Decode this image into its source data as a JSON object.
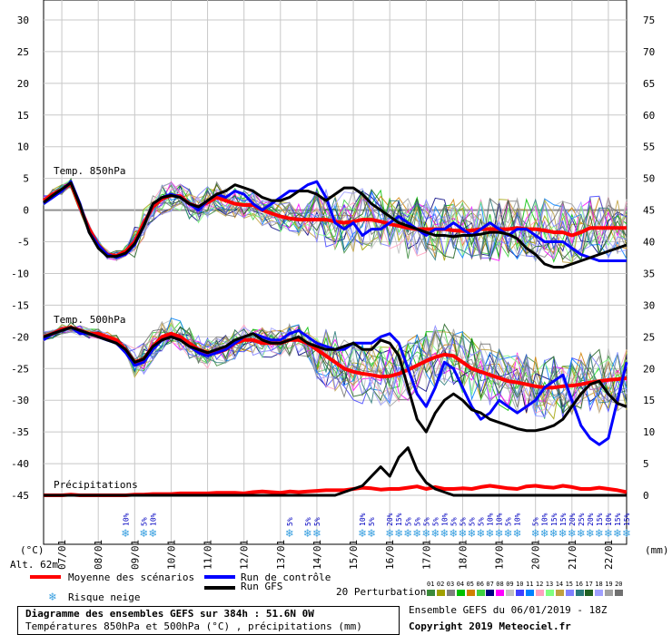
{
  "chart_data": {
    "type": "line",
    "title": "Diagramme des ensembles GEFS sur 384h : 51.6N 0W",
    "subtitle": "Températures 850hPa et 500hPa (°C) , précipitations (mm)",
    "left_axis_unit": "(°C)",
    "right_axis_unit": "(mm)",
    "altitude_label": "Alt. 62m",
    "left_ticks": [
      30,
      25,
      20,
      15,
      10,
      5,
      0,
      -5,
      -10,
      -15,
      -20,
      -25,
      -30,
      -35,
      -40,
      -45
    ],
    "right_ticks": [
      75,
      70,
      65,
      60,
      55,
      50,
      45,
      40,
      35,
      30,
      25,
      20,
      15,
      10,
      5,
      0
    ],
    "ylim": [
      -45,
      30
    ],
    "x_dates": [
      "07/01",
      "08/01",
      "09/01",
      "10/01",
      "11/01",
      "12/01",
      "13/01",
      "14/01",
      "15/01",
      "16/01",
      "17/01",
      "18/01",
      "19/01",
      "20/01",
      "21/01",
      "22/01"
    ],
    "panel_labels": [
      "Temp. 850hPa",
      "Temp. 500hPa",
      "Précipitations"
    ],
    "x_hours": [
      0,
      6,
      12,
      18,
      24,
      30,
      36,
      42,
      48,
      54,
      60,
      66,
      72,
      78,
      84,
      90,
      96,
      102,
      108,
      114,
      120,
      126,
      132,
      138,
      144,
      150,
      156,
      162,
      168,
      174,
      180,
      186,
      192,
      198,
      204,
      210,
      216,
      222,
      228,
      234,
      240,
      246,
      252,
      258,
      264,
      270,
      276,
      282,
      288,
      294,
      300,
      306,
      312,
      318,
      324,
      330,
      336,
      342,
      348,
      354,
      360,
      366,
      372,
      378,
      384
    ],
    "series": [
      {
        "name": "Moyenne des scénarios",
        "color": "#ff0000",
        "group": "t850",
        "values": [
          1.5,
          2.5,
          3.2,
          4.2,
          0.5,
          -3,
          -5.5,
          -7,
          -7.2,
          -6.5,
          -5,
          -2,
          0.5,
          1.8,
          2.3,
          2.2,
          1,
          0.5,
          1.2,
          2,
          1.5,
          1,
          0.8,
          0.8,
          0,
          -0.5,
          -1,
          -1.3,
          -1.5,
          -1.5,
          -1.5,
          -1.5,
          -1.8,
          -2,
          -1.8,
          -1.5,
          -1.5,
          -1.8,
          -2.2,
          -2.5,
          -2.8,
          -3,
          -3,
          -3,
          -3,
          -3.2,
          -3.3,
          -3.2,
          -3,
          -3,
          -3,
          -3,
          -2.8,
          -3,
          -3,
          -3.2,
          -3.5,
          -3.5,
          -4,
          -3.5,
          -2.8,
          -2.8,
          -2.8,
          -2.8,
          -2.8
        ]
      },
      {
        "name": "Run de contrôle",
        "color": "#0000ff",
        "group": "t850",
        "values": [
          1,
          2,
          3,
          4.5,
          1,
          -3.5,
          -5.5,
          -7,
          -7.5,
          -7,
          -5.5,
          -2.5,
          1,
          2,
          2.5,
          2,
          1,
          0,
          1.5,
          2.5,
          2,
          3,
          2.5,
          1,
          0,
          1,
          2,
          3,
          3,
          4,
          4.5,
          2,
          -2,
          -3,
          -2,
          -4,
          -3,
          -3,
          -2,
          -1,
          -2,
          -3,
          -4,
          -3,
          -3,
          -2,
          -3,
          -4,
          -3,
          -2,
          -3,
          -4,
          -3,
          -3,
          -4,
          -5,
          -5,
          -5,
          -6,
          -7,
          -7.5,
          -8,
          -8,
          -8,
          -8
        ]
      },
      {
        "name": "Run GFS",
        "color": "#000000",
        "group": "t850",
        "values": [
          1.2,
          2.3,
          3.3,
          4.3,
          0.8,
          -3.5,
          -6,
          -7.3,
          -7.3,
          -6.8,
          -5.3,
          -2.5,
          1,
          2,
          2.3,
          2,
          1,
          0.5,
          1.5,
          2.5,
          3,
          4,
          3.5,
          3,
          2,
          1.5,
          1.5,
          2,
          3,
          3,
          2.5,
          1.5,
          2.5,
          3.5,
          3.5,
          2.5,
          1,
          0,
          -1,
          -2,
          -2.5,
          -3,
          -3.5,
          -4,
          -4,
          -4.2,
          -4,
          -4,
          -3.8,
          -3.5,
          -3.5,
          -3.8,
          -4.5,
          -6,
          -7,
          -8.5,
          -9,
          -9,
          -8.5,
          -8,
          -7.5,
          -7,
          -6.5,
          -6,
          -5.5
        ]
      },
      {
        "name": "Moyenne des scénarios",
        "color": "#ff0000",
        "group": "t500",
        "values": [
          -20,
          -19.5,
          -18.8,
          -18.5,
          -19,
          -19.5,
          -19.5,
          -20,
          -20.5,
          -22,
          -24,
          -23.5,
          -21.5,
          -20,
          -19.5,
          -20,
          -21,
          -22,
          -22.5,
          -22.5,
          -22,
          -21,
          -20.5,
          -20.5,
          -21,
          -21,
          -21,
          -20.5,
          -20.5,
          -21,
          -22,
          -23,
          -24,
          -25,
          -25.5,
          -25.8,
          -26,
          -26.3,
          -26.2,
          -25.8,
          -25.2,
          -24.5,
          -23.8,
          -23.2,
          -22.8,
          -23,
          -24,
          -25,
          -25.5,
          -26,
          -26.5,
          -27,
          -27.2,
          -27.5,
          -27.8,
          -28,
          -28,
          -27.8,
          -27.7,
          -27.5,
          -27.2,
          -27,
          -26.8,
          -26.7,
          -26.5
        ]
      },
      {
        "name": "Run de contrôle",
        "color": "#0000ff",
        "group": "t500",
        "values": [
          -20.5,
          -19.5,
          -19,
          -18.5,
          -19.5,
          -19.5,
          -20,
          -20.5,
          -21,
          -22.5,
          -24.5,
          -24,
          -22,
          -20.5,
          -20,
          -20.5,
          -21.5,
          -22.5,
          -23,
          -22.5,
          -22,
          -21,
          -20,
          -19.5,
          -20,
          -20.5,
          -20.5,
          -19.5,
          -19,
          -20,
          -21,
          -21.5,
          -22,
          -22,
          -21,
          -21,
          -21,
          -20,
          -19.5,
          -21,
          -25,
          -29,
          -31,
          -28,
          -24,
          -25,
          -28,
          -31,
          -33,
          -32,
          -30,
          -31,
          -32,
          -31,
          -30,
          -28,
          -27,
          -26,
          -30,
          -34,
          -36,
          -37,
          -36,
          -30,
          -24
        ]
      },
      {
        "name": "Run GFS",
        "color": "#000000",
        "group": "t500",
        "values": [
          -20,
          -19.5,
          -19,
          -18.5,
          -19,
          -19.5,
          -20,
          -20.5,
          -21,
          -22,
          -24,
          -23.5,
          -21.5,
          -20.5,
          -20,
          -20.5,
          -21.5,
          -22,
          -22.5,
          -22,
          -21.5,
          -20.5,
          -20,
          -19.5,
          -20.5,
          -21,
          -21,
          -20.5,
          -20,
          -21,
          -21.5,
          -22,
          -22,
          -21.5,
          -21,
          -22,
          -22,
          -20.5,
          -21,
          -23,
          -28,
          -33,
          -35,
          -32,
          -30,
          -29,
          -30,
          -31.5,
          -32,
          -33,
          -33.5,
          -34,
          -34.5,
          -34.8,
          -34.8,
          -34.5,
          -34,
          -33,
          -31,
          -29,
          -27.5,
          -27,
          -29,
          -30.5,
          -31
        ]
      },
      {
        "name": "Moyenne des scénarios",
        "color": "#ff0000",
        "group": "precip_mm",
        "values": [
          0,
          0,
          0,
          0.1,
          0,
          0,
          0,
          0,
          0,
          0,
          0.1,
          0.1,
          0.2,
          0.2,
          0.2,
          0.3,
          0.3,
          0.3,
          0.3,
          0.4,
          0.4,
          0.4,
          0.3,
          0.5,
          0.6,
          0.5,
          0.4,
          0.6,
          0.5,
          0.6,
          0.7,
          0.8,
          0.8,
          0.8,
          1,
          1.2,
          1.1,
          0.9,
          1,
          1,
          1.2,
          1.4,
          1,
          1.3,
          1,
          1,
          1.1,
          1,
          1.3,
          1.5,
          1.3,
          1.1,
          1,
          1.4,
          1.5,
          1.3,
          1.2,
          1.5,
          1.3,
          1,
          1,
          1.2,
          1,
          0.8,
          0.5
        ]
      },
      {
        "name": "Run GFS",
        "color": "#000000",
        "group": "precip_mm",
        "values": [
          0,
          0,
          0,
          0,
          0,
          0,
          0,
          0,
          0,
          0,
          0,
          0,
          0,
          0,
          0,
          0,
          0,
          0,
          0,
          0,
          0,
          0,
          0,
          0,
          0,
          0,
          0,
          0,
          0,
          0,
          0,
          0,
          0,
          0.5,
          1,
          1.5,
          3,
          4.5,
          3,
          6,
          7.5,
          4,
          2,
          1,
          0.5,
          0,
          0,
          0,
          0,
          0,
          0,
          0,
          0,
          0,
          0,
          0,
          0,
          0,
          0,
          0,
          0,
          0,
          0,
          0,
          0
        ]
      }
    ],
    "snow_risk": [
      {
        "day": "09/01",
        "hour": 54,
        "pct": "10%"
      },
      {
        "day": "09/01",
        "hour": 66,
        "pct": "5%"
      },
      {
        "day": "09/01",
        "hour": 72,
        "pct": "10%"
      },
      {
        "day": "13/01",
        "hour": 162,
        "pct": "5%"
      },
      {
        "day": "13/01",
        "hour": 174,
        "pct": "5%"
      },
      {
        "day": "13/01",
        "hour": 180,
        "pct": "5%"
      },
      {
        "day": "15/01",
        "hour": 210,
        "pct": "10%"
      },
      {
        "day": "15/01",
        "hour": 216,
        "pct": "5%"
      },
      {
        "day": "16/01",
        "hour": 228,
        "pct": "20%"
      },
      {
        "day": "16/01",
        "hour": 234,
        "pct": "15%"
      },
      {
        "day": "16/01",
        "hour": 240,
        "pct": "5%"
      },
      {
        "day": "16/01",
        "hour": 246,
        "pct": "5%"
      },
      {
        "day": "16/01",
        "hour": 252,
        "pct": "5%"
      },
      {
        "day": "17/01",
        "hour": 258,
        "pct": "5%"
      },
      {
        "day": "17/01",
        "hour": 264,
        "pct": "10%"
      },
      {
        "day": "17/01",
        "hour": 270,
        "pct": "5%"
      },
      {
        "day": "17/01",
        "hour": 276,
        "pct": "5%"
      },
      {
        "day": "17/01",
        "hour": 282,
        "pct": "5%"
      },
      {
        "day": "18/01",
        "hour": 288,
        "pct": "5%"
      },
      {
        "day": "18/01",
        "hour": 294,
        "pct": "10%"
      },
      {
        "day": "18/01",
        "hour": 300,
        "pct": "10%"
      },
      {
        "day": "18/01",
        "hour": 306,
        "pct": "5%"
      },
      {
        "day": "18/01",
        "hour": 312,
        "pct": "10%"
      },
      {
        "day": "19/01",
        "hour": 324,
        "pct": "5%"
      },
      {
        "day": "19/01",
        "hour": 330,
        "pct": "10%"
      },
      {
        "day": "19/01",
        "hour": 336,
        "pct": "15%"
      },
      {
        "day": "20/01",
        "hour": 342,
        "pct": "15%"
      },
      {
        "day": "20/01",
        "hour": 348,
        "pct": "20%"
      },
      {
        "day": "20/01",
        "hour": 354,
        "pct": "25%"
      },
      {
        "day": "20/01",
        "hour": 360,
        "pct": "20%"
      },
      {
        "day": "21/01",
        "hour": 366,
        "pct": "15%"
      },
      {
        "day": "21/01",
        "hour": 372,
        "pct": "10%"
      },
      {
        "day": "21/01",
        "hour": 378,
        "pct": "15%"
      },
      {
        "day": "22/01",
        "hour": 384,
        "pct": "15%"
      }
    ],
    "perturbation_count": 20,
    "perturbation_colors": [
      "#3a8a3a",
      "#a0a000",
      "#808080",
      "#00c000",
      "#d08000",
      "#40d040",
      "#000080",
      "#ff00ff",
      "#c0c0c0",
      "#4040ff",
      "#0080ff",
      "#ffa0c0",
      "#80ff80",
      "#c0a040",
      "#8080ff",
      "#2a7a7a",
      "#206020",
      "#a0a0ff",
      "#a0a0a0",
      "#707070"
    ]
  },
  "legend": {
    "mean_label": "Moyenne des scénarios",
    "control_label": "Run de contrôle",
    "gfs_label": "Run GFS",
    "snow_label": "Risque neige",
    "perturbations_label": "20 Perturbations",
    "perturbation_numbers": [
      "01",
      "02",
      "03",
      "04",
      "05",
      "06",
      "07",
      "08",
      "09",
      "10",
      "11",
      "12",
      "13",
      "14",
      "15",
      "16",
      "17",
      "18",
      "19",
      "20"
    ]
  },
  "footer": {
    "title": "Diagramme des ensembles GEFS sur 384h : 51.6N 0W",
    "subtitle": "Températures 850hPa et 500hPa (°C) , précipitations (mm)",
    "run_info": "Ensemble GEFS du 06/01/2019 - 18Z",
    "copyright": "Copyright 2019 Meteociel.fr"
  }
}
